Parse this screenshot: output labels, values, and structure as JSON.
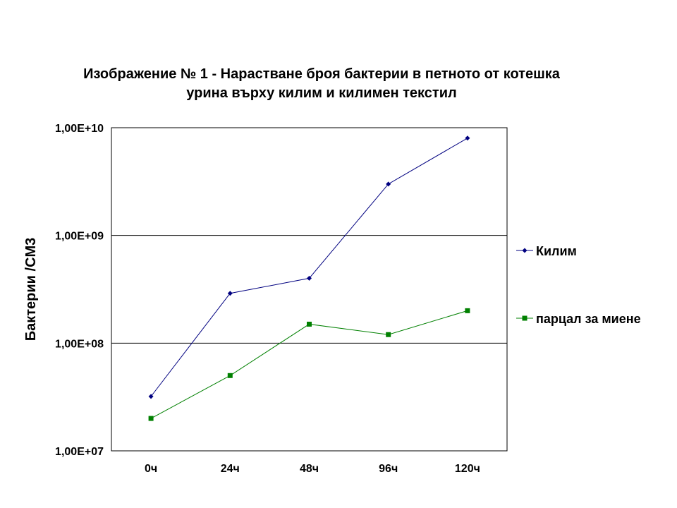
{
  "chart_data": {
    "type": "line",
    "title_lines": [
      "Изображение № 1 - Нарастване броя бактерии в петното от котешка",
      "урина върху килим и килимен текстил"
    ],
    "xlabel": "",
    "ylabel": "Бактерии /CM3",
    "y_scale": "log",
    "ylim": [
      10000000,
      10000000000
    ],
    "y_ticks": [
      10000000,
      100000000,
      1000000000,
      10000000000
    ],
    "y_tick_labels": [
      "1,00E+07",
      "1,00E+08",
      "1,00E+09",
      "1,00E+10"
    ],
    "grid": "horizontal",
    "legend_position": "right",
    "categories": [
      "0ч",
      "24ч",
      "48ч",
      "96ч",
      "120ч"
    ],
    "series": [
      {
        "name": "Килим",
        "color": "#000080",
        "marker": "diamond",
        "values": [
          32000000,
          290000000,
          400000000,
          3000000000,
          8000000000
        ]
      },
      {
        "name": "парцал за миене",
        "color": "#008000",
        "marker": "square",
        "values": [
          20000000,
          50000000,
          150000000,
          120000000,
          200000000
        ]
      }
    ]
  }
}
